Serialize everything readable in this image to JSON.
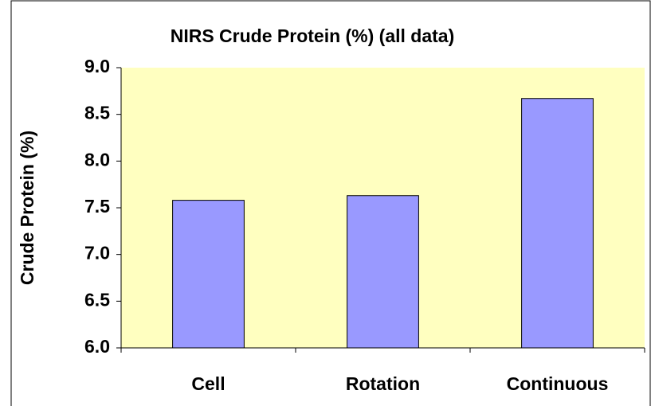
{
  "chart_data": {
    "type": "bar",
    "title": "NIRS Crude Protein (%) (all data)",
    "y_label": "Crude Protein (%)",
    "categories": [
      "Cell",
      "Rotation",
      "Continuous"
    ],
    "values": [
      7.58,
      7.63,
      8.67
    ],
    "color": "#9999ff",
    "plot_background": "#ffffc0",
    "ylim": [
      6,
      9
    ],
    "yticks": [
      {
        "value": 6,
        "label": "6.0"
      },
      6.5,
      {
        "value": 7,
        "label": "7.0"
      },
      7.5,
      {
        "value": 8,
        "label": "8.0"
      },
      8.5,
      {
        "value": 9,
        "label": "9.0"
      }
    ],
    "grid": false
  }
}
